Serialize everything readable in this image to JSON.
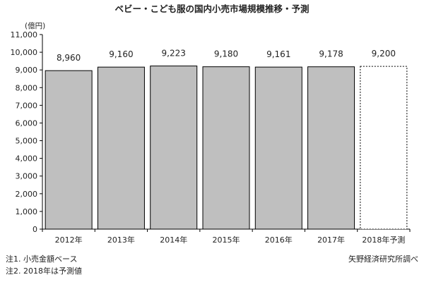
{
  "chart_data": {
    "type": "bar",
    "title": "ベビー・こども服の国内小売市場規模推移・予測",
    "ylabel": "(億円)",
    "xlabel": "",
    "categories": [
      "2012年",
      "2013年",
      "2014年",
      "2015年",
      "2016年",
      "2017年",
      "2018年予測"
    ],
    "values": [
      8960,
      9160,
      9223,
      9180,
      9161,
      9178,
      9200
    ],
    "value_labels": [
      "8,960",
      "9,160",
      "9,223",
      "9,180",
      "9,161",
      "9,178",
      "9,200"
    ],
    "forecast": [
      false,
      false,
      false,
      false,
      false,
      false,
      true
    ],
    "ylim": [
      0,
      11000
    ],
    "yticks": [
      0,
      1000,
      2000,
      3000,
      4000,
      5000,
      6000,
      7000,
      8000,
      9000,
      10000,
      11000
    ],
    "ytick_labels": [
      "0",
      "1,000",
      "2,000",
      "3,000",
      "4,000",
      "5,000",
      "6,000",
      "7,000",
      "8,000",
      "9,000",
      "10,000",
      "11,000"
    ],
    "grid": false,
    "colors": {
      "bar": "#bfbfbf",
      "bar_edge": "#000000",
      "forecast_fill": "#ffffff",
      "axis": "#000000"
    }
  },
  "notes": [
    "注1. 小売金額ベース",
    "注2. 2018年は予測値"
  ],
  "source": "矢野経済研究所調べ"
}
